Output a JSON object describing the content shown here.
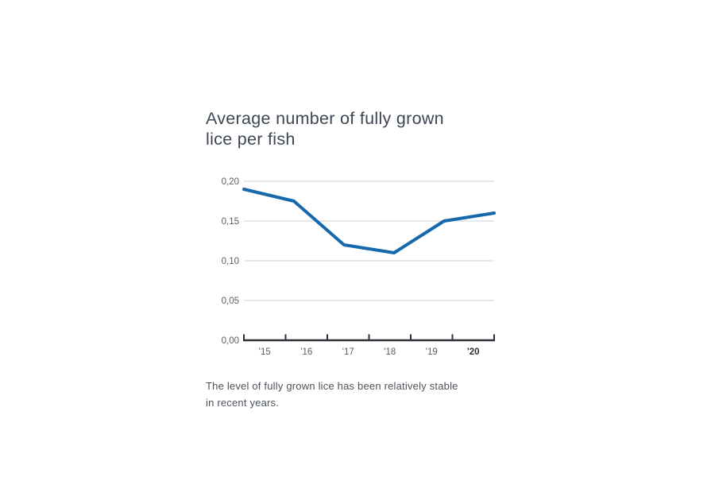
{
  "chart_data": {
    "type": "line",
    "title": "Average number of fully grown lice per fish",
    "title_lines": [
      "Average number of fully grown",
      "lice per fish"
    ],
    "caption": "The level of fully grown lice has been relatively stable in recent years.",
    "caption_lines": [
      "The level of fully grown lice has been relatively stable",
      "in recent years."
    ],
    "categories": [
      "'15",
      "'16",
      "'17",
      "'18",
      "'19",
      "'20"
    ],
    "values": [
      0.19,
      0.175,
      0.12,
      0.11,
      0.15,
      0.16
    ],
    "xlabel": "",
    "ylabel": "",
    "ylim": [
      0,
      0.2
    ],
    "yticks": [
      {
        "value": 0.0,
        "label": "0,00"
      },
      {
        "value": 0.05,
        "label": "0,05"
      },
      {
        "value": 0.1,
        "label": "0,10"
      },
      {
        "value": 0.15,
        "label": "0,15"
      },
      {
        "value": 0.2,
        "label": "0,20"
      }
    ],
    "grid": true,
    "legend": "none",
    "decimal_separator": ",",
    "emphasized_category": "'20",
    "colors": {
      "line": "#1668ad",
      "grid": "#d9d9d9",
      "axis": "#2c3036",
      "tick_label": "#595e64",
      "emphasized_label": "#2a2f36",
      "title": "#3d4652",
      "caption": "#4d535b"
    }
  }
}
